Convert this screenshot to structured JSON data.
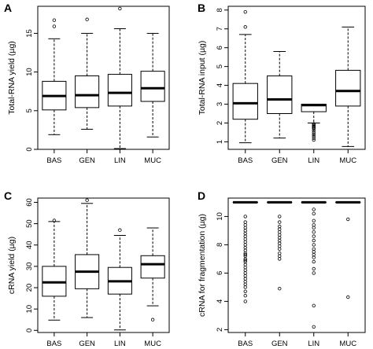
{
  "chart_data": [
    {
      "type": "boxplot",
      "panel": "A",
      "ylabel": "Total-RNA yield (µg)",
      "ylim": [
        0,
        18.5
      ],
      "yticks": [
        0,
        5,
        10,
        15
      ],
      "categories": [
        "BAS",
        "GEN",
        "LIN",
        "MUC"
      ],
      "boxes": [
        {
          "whisker_low": 1.9,
          "q1": 5.1,
          "median": 6.9,
          "q3": 8.8,
          "whisker_high": 14.3,
          "outliers": [
            15.9,
            16.7
          ]
        },
        {
          "whisker_low": 2.6,
          "q1": 5.4,
          "median": 7.0,
          "q3": 9.5,
          "whisker_high": 15.0,
          "outliers": [
            16.8
          ]
        },
        {
          "whisker_low": 0.1,
          "q1": 5.6,
          "median": 7.3,
          "q3": 9.7,
          "whisker_high": 15.6,
          "outliers": [
            18.2
          ]
        },
        {
          "whisker_low": 1.6,
          "q1": 6.2,
          "median": 7.9,
          "q3": 10.1,
          "whisker_high": 15.0,
          "outliers": []
        }
      ]
    },
    {
      "type": "boxplot",
      "panel": "B",
      "ylabel": "Total-RNA input (µg)",
      "ylim": [
        0.6,
        8.2
      ],
      "yticks": [
        1,
        2,
        3,
        4,
        5,
        6,
        7,
        8
      ],
      "categories": [
        "BAS",
        "GEN",
        "LIN",
        "MUC"
      ],
      "boxes": [
        {
          "whisker_low": 0.95,
          "q1": 2.2,
          "median": 3.05,
          "q3": 4.1,
          "whisker_high": 6.7,
          "outliers": [
            7.1,
            7.9
          ]
        },
        {
          "whisker_low": 1.2,
          "q1": 2.5,
          "median": 3.25,
          "q3": 4.5,
          "whisker_high": 5.8,
          "outliers": []
        },
        {
          "whisker_low": 2.0,
          "q1": 2.6,
          "median": 2.95,
          "q3": 3.0,
          "whisker_high": 3.0,
          "outliers": [
            1.95,
            1.9,
            1.85,
            1.8,
            1.75,
            1.7,
            1.6,
            1.5,
            1.4,
            1.3,
            1.2,
            1.1
          ]
        },
        {
          "whisker_low": 0.75,
          "q1": 2.9,
          "median": 3.7,
          "q3": 4.8,
          "whisker_high": 7.1,
          "outliers": []
        }
      ]
    },
    {
      "type": "boxplot",
      "panel": "C",
      "ylabel": "cRNA yield (µg)",
      "ylim": [
        -1,
        62
      ],
      "yticks": [
        0,
        10,
        20,
        30,
        40,
        50,
        60
      ],
      "categories": [
        "BAS",
        "GEN",
        "LIN",
        "MUC"
      ],
      "boxes": [
        {
          "whisker_low": 4.8,
          "q1": 16.0,
          "median": 22.5,
          "q3": 30.0,
          "whisker_high": 51.0,
          "outliers": [
            51.5
          ]
        },
        {
          "whisker_low": 6.0,
          "q1": 19.5,
          "median": 27.5,
          "q3": 35.5,
          "whisker_high": 59.5,
          "outliers": [
            61.0
          ]
        },
        {
          "whisker_low": 0.2,
          "q1": 17.0,
          "median": 23.0,
          "q3": 29.5,
          "whisker_high": 44.5,
          "outliers": [
            47.0
          ]
        },
        {
          "whisker_low": 11.5,
          "q1": 24.5,
          "median": 31.0,
          "q3": 35.0,
          "whisker_high": 48.0,
          "outliers": [
            5.0
          ]
        }
      ]
    },
    {
      "type": "boxplot",
      "panel": "D",
      "ylabel": "cRNA for fragmentation (µg)",
      "ylim": [
        1.8,
        11.3
      ],
      "yticks": [
        2,
        4,
        6,
        8,
        10
      ],
      "categories": [
        "BAS",
        "GEN",
        "LIN",
        "MUC"
      ],
      "boxes": [
        {
          "whisker_low": 11.0,
          "q1": 11.0,
          "median": 11.0,
          "q3": 11.0,
          "whisker_high": 11.0,
          "outliers": [
            10.0,
            9.6,
            9.4,
            9.2,
            9.0,
            8.8,
            8.6,
            8.4,
            8.2,
            8.0,
            7.8,
            7.6,
            7.4,
            7.3,
            7.2,
            7.0,
            6.9,
            6.8,
            6.6,
            6.4,
            6.2,
            6.0,
            5.8,
            5.6,
            5.4,
            5.2,
            5.0,
            4.7,
            4.4,
            4.0
          ]
        },
        {
          "whisker_low": 11.0,
          "q1": 11.0,
          "median": 11.0,
          "q3": 11.0,
          "whisker_high": 11.0,
          "outliers": [
            10.0,
            9.6,
            9.3,
            9.1,
            8.9,
            8.7,
            8.5,
            8.3,
            8.1,
            7.9,
            7.7,
            7.4,
            7.2,
            7.0,
            4.9
          ]
        },
        {
          "whisker_low": 11.0,
          "q1": 11.0,
          "median": 11.0,
          "q3": 11.0,
          "whisker_high": 11.0,
          "outliers": [
            10.5,
            10.2,
            9.7,
            9.4,
            9.2,
            8.9,
            8.6,
            8.3,
            8.0,
            7.7,
            7.5,
            7.3,
            7.1,
            6.8,
            6.3,
            6.0,
            3.7,
            2.2
          ]
        },
        {
          "whisker_low": 11.0,
          "q1": 11.0,
          "median": 11.0,
          "q3": 11.0,
          "whisker_high": 11.0,
          "outliers": [
            9.8,
            4.3
          ]
        }
      ]
    }
  ]
}
